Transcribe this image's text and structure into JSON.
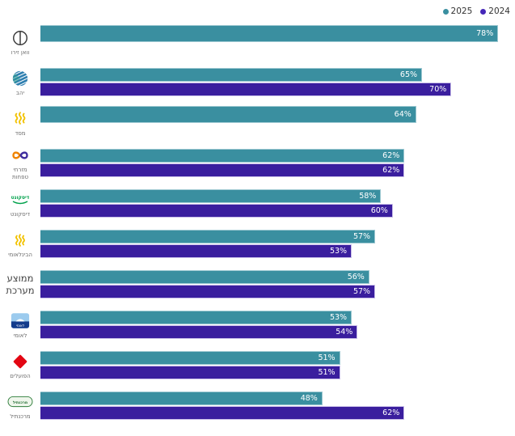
{
  "legend": {
    "items": [
      {
        "label": "2025",
        "color": "#3A8FA0"
      },
      {
        "label": "2024",
        "color": "#4527B8"
      }
    ]
  },
  "chart_data": {
    "type": "bar",
    "orientation": "horizontal",
    "title": "",
    "value_suffix": "%",
    "xlim": [
      0,
      81
    ],
    "categories": [
      "וואן זירו",
      "יהב",
      "מסד",
      "מזרחי טפחות",
      "דיסקונט",
      "הבינלאומי",
      "ממוצע מערכת",
      "לאומי",
      "הפועלים",
      "מרכנתיל"
    ],
    "series": [
      {
        "name": "2025",
        "color": "#3A8FA0",
        "values": [
          78,
          65,
          64,
          62,
          58,
          57,
          56,
          53,
          51,
          48
        ]
      },
      {
        "name": "2024",
        "color": "#3A1E9E",
        "values": [
          null,
          70,
          null,
          62,
          60,
          53,
          57,
          54,
          51,
          62
        ]
      }
    ],
    "legend_position": "top-right",
    "grid": false,
    "logos": [
      "onezero",
      "yahav",
      "massad",
      "mizrahi-tefahot",
      "discount",
      "beinleumi",
      null,
      "leumi",
      "hapoalim",
      "mercantile"
    ]
  }
}
